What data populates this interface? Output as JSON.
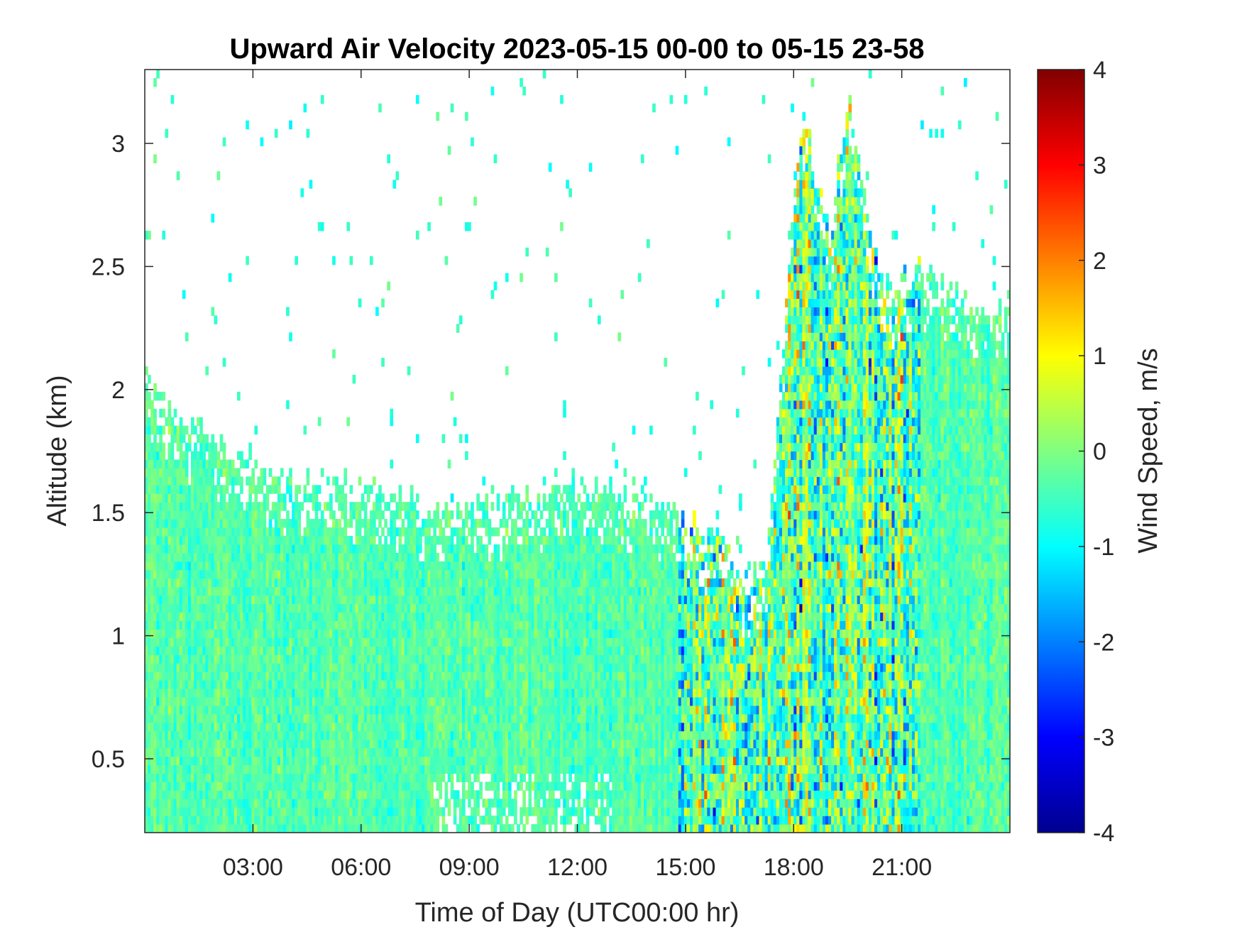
{
  "chart_data": {
    "type": "heatmap",
    "title": "Upward Air Velocity 2023-05-15 00-00 to 05-15 23-58",
    "xlabel": "Time of Day (UTC00:00 hr)",
    "ylabel": "Altitude (km)",
    "colorbar_label": "Wind Speed, m/s",
    "xlim_hours": [
      0,
      24
    ],
    "ylim_km": [
      0.2,
      3.3
    ],
    "clim": [
      -4,
      4
    ],
    "colormap": "jet",
    "grid": false,
    "x_ticks": [
      {
        "hour": 3,
        "label": "03:00"
      },
      {
        "hour": 6,
        "label": "06:00"
      },
      {
        "hour": 9,
        "label": "09:00"
      },
      {
        "hour": 12,
        "label": "12:00"
      },
      {
        "hour": 15,
        "label": "15:00"
      },
      {
        "hour": 18,
        "label": "18:00"
      },
      {
        "hour": 21,
        "label": "21:00"
      }
    ],
    "y_ticks": [
      {
        "value": 0.5,
        "label": "0.5"
      },
      {
        "value": 1,
        "label": "1"
      },
      {
        "value": 1.5,
        "label": "1.5"
      },
      {
        "value": 2,
        "label": "2"
      },
      {
        "value": 2.5,
        "label": "2.5"
      },
      {
        "value": 3,
        "label": "3"
      }
    ],
    "colorbar_ticks": [
      {
        "value": 4,
        "label": "4"
      },
      {
        "value": 3,
        "label": "3"
      },
      {
        "value": 2,
        "label": "2"
      },
      {
        "value": 1,
        "label": "1"
      },
      {
        "value": 0,
        "label": "0"
      },
      {
        "value": -1,
        "label": "-1"
      },
      {
        "value": -2,
        "label": "-2"
      },
      {
        "value": -3,
        "label": "-3"
      },
      {
        "value": -4,
        "label": "-4"
      }
    ],
    "data_top_altitude_km": [
      {
        "hour": 0.0,
        "km": 2.05
      },
      {
        "hour": 1.2,
        "km": 1.85
      },
      {
        "hour": 3.0,
        "km": 1.75
      },
      {
        "hour": 3.5,
        "km": 1.65
      },
      {
        "hour": 6.0,
        "km": 1.62
      },
      {
        "hour": 8.5,
        "km": 1.5
      },
      {
        "hour": 10.0,
        "km": 1.55
      },
      {
        "hour": 12.0,
        "km": 1.65
      },
      {
        "hour": 14.0,
        "km": 1.55
      },
      {
        "hour": 15.0,
        "km": 1.45
      },
      {
        "hour": 16.0,
        "km": 1.42
      },
      {
        "hour": 16.8,
        "km": 1.2
      },
      {
        "hour": 17.3,
        "km": 1.38
      },
      {
        "hour": 18.0,
        "km": 2.8
      },
      {
        "hour": 18.3,
        "km": 3.15
      },
      {
        "hour": 19.0,
        "km": 2.6
      },
      {
        "hour": 19.5,
        "km": 3.2
      },
      {
        "hour": 20.5,
        "km": 2.4
      },
      {
        "hour": 21.5,
        "km": 2.5
      },
      {
        "hour": 22.5,
        "km": 2.4
      },
      {
        "hour": 24.0,
        "km": 2.3
      }
    ]
  }
}
